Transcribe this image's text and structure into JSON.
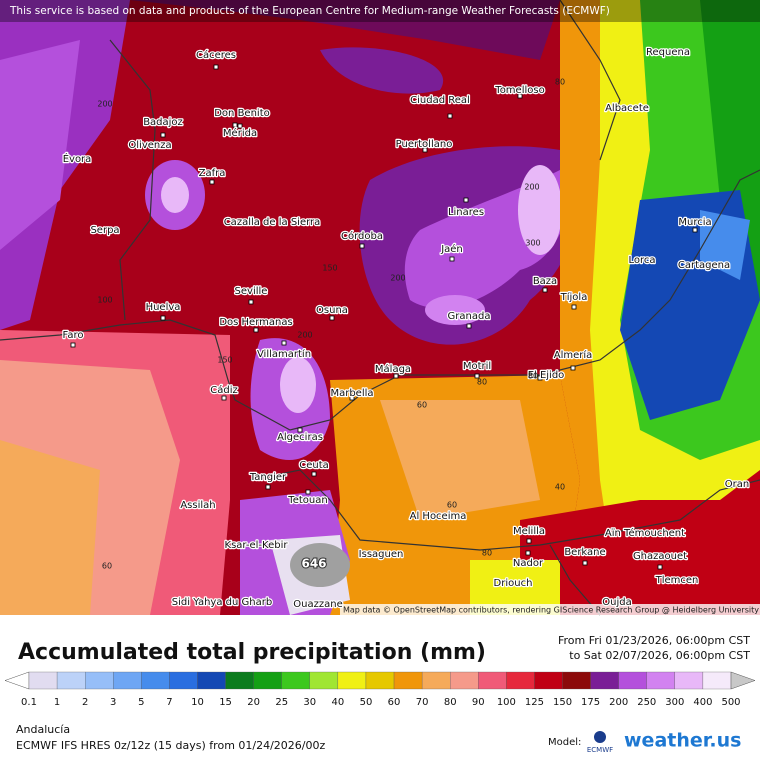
{
  "header_notice": "This service is based on data and products of the European Centre for Medium-range Weather Forecasts (ECMWF)",
  "map": {
    "cities": [
      "Cáceres",
      "Requena",
      "Tomelloso",
      "Ciudad Real",
      "Albacete",
      "Don Benito",
      "Badajoz",
      "Mérida",
      "Puertollano",
      "Évora",
      "Olivenza",
      "Zafra",
      "Linares",
      "Murcia",
      "Cazalla de la Sierra",
      "Serpa",
      "Córdoba",
      "Jaén",
      "Lorca",
      "Cartagena",
      "Baza",
      "Seville",
      "Huelva",
      "Tíjola",
      "Osuna",
      "Dos Hermanas",
      "Faro",
      "Granada",
      "Villamartín",
      "Almería",
      "Málaga",
      "Motril",
      "El Ejido",
      "Cádiz",
      "Marbella",
      "Algeciras",
      "Ceuta",
      "Tangier",
      "Oran",
      "Tetouan",
      "Assilah",
      "Al Hoceima",
      "Melilla",
      "Aïn Témouchent",
      "Ksar-el-Kebir",
      "Issaguen",
      "Berkane",
      "Nador",
      "Ghazaouet",
      "Tlemcen",
      "Driouch",
      "Sidi Yahya du Gharb",
      "Ouazzane",
      "Oujda"
    ],
    "contour_labels": [
      200,
      80,
      200,
      300,
      200,
      150,
      100,
      200,
      150,
      60,
      80,
      80,
      60,
      40,
      80,
      60
    ],
    "max_label": 646,
    "attribution": "Map data © OpenStreetMap contributors, rendering GIScience Research Group @ Heidelberg University"
  },
  "title": "Accumulated total precipitation (mm)",
  "period": {
    "from": "From Fri 01/23/2026, 06:00pm CST",
    "to": "to Sat 02/07/2026, 06:00pm CST"
  },
  "colorbar": {
    "ticks": [
      0.1,
      1,
      2,
      3,
      5,
      7,
      10,
      15,
      20,
      25,
      30,
      40,
      50,
      60,
      70,
      80,
      90,
      100,
      125,
      150,
      175,
      200,
      250,
      300,
      400,
      500
    ],
    "colors": [
      "#ffffff",
      "#e1dcf0",
      "#bcd2f8",
      "#96bef8",
      "#6ea6f4",
      "#468cec",
      "#2a6ee0",
      "#1448b4",
      "#0c7c1e",
      "#14a014",
      "#3cc81e",
      "#a0e632",
      "#f0f014",
      "#e6c800",
      "#f0960a",
      "#f5aa5a",
      "#f59a8a",
      "#f05a78",
      "#e6283c",
      "#c00014",
      "#8c0a0a",
      "#7a1e96",
      "#b450dc",
      "#d282f0",
      "#e8b8f8",
      "#f5eafa",
      "#c8c8c8",
      "#a0a0a0"
    ]
  },
  "region": "Andalucía",
  "model_run": "ECMWF IFS HRES 0z/12z (15 days) from 01/24/2026/00z",
  "model_label": "Model:",
  "model_logo": "ECMWF",
  "brand": "weather.us"
}
